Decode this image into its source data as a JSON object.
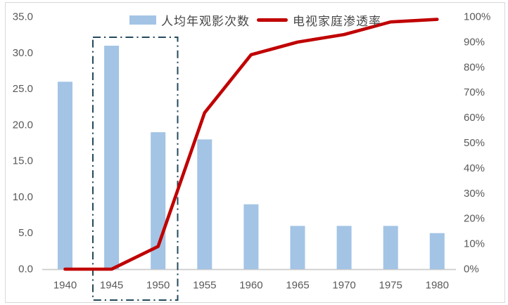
{
  "chart_data": {
    "type": "combo-bar-line",
    "title": "",
    "categories": [
      "1940",
      "1945",
      "1950",
      "1955",
      "1960",
      "1965",
      "1970",
      "1975",
      "1980"
    ],
    "series": [
      {
        "name": "人均年观影次数",
        "type": "bar",
        "axis": "left",
        "values": [
          26,
          31,
          19,
          18,
          9,
          6,
          6,
          6,
          5
        ]
      },
      {
        "name": "电视家庭渗透率",
        "type": "line",
        "axis": "right",
        "unit": "%",
        "values": [
          0,
          0,
          9,
          62,
          85,
          90,
          93,
          98,
          99
        ]
      }
    ],
    "left_axis": {
      "min": 0,
      "max": 35,
      "step": 5,
      "tick_labels": [
        "35.0",
        "30.0",
        "25.0",
        "20.0",
        "15.0",
        "10.0",
        "5.0",
        "0.0"
      ]
    },
    "right_axis": {
      "min": 0,
      "max": 100,
      "step": 10,
      "tick_labels": [
        "100%",
        "90%",
        "80%",
        "70%",
        "60%",
        "50%",
        "40%",
        "30%",
        "20%",
        "10%",
        "0%"
      ]
    },
    "grid": false,
    "legend_position": "top",
    "annotation_box": {
      "style": "dash-dot",
      "around_categories": [
        "1945",
        "1950"
      ]
    }
  },
  "legend": {
    "bar_label": "人均年观影次数",
    "line_label": "电视家庭渗透率"
  },
  "colors": {
    "bar_fill": "#a3c4e5",
    "line_stroke": "#c00000",
    "box_stroke": "#24495c",
    "tick_text": "#595959",
    "legend_text": "#474747",
    "axis_line": "#cccccc",
    "frame_border": "#d9d9d9"
  }
}
